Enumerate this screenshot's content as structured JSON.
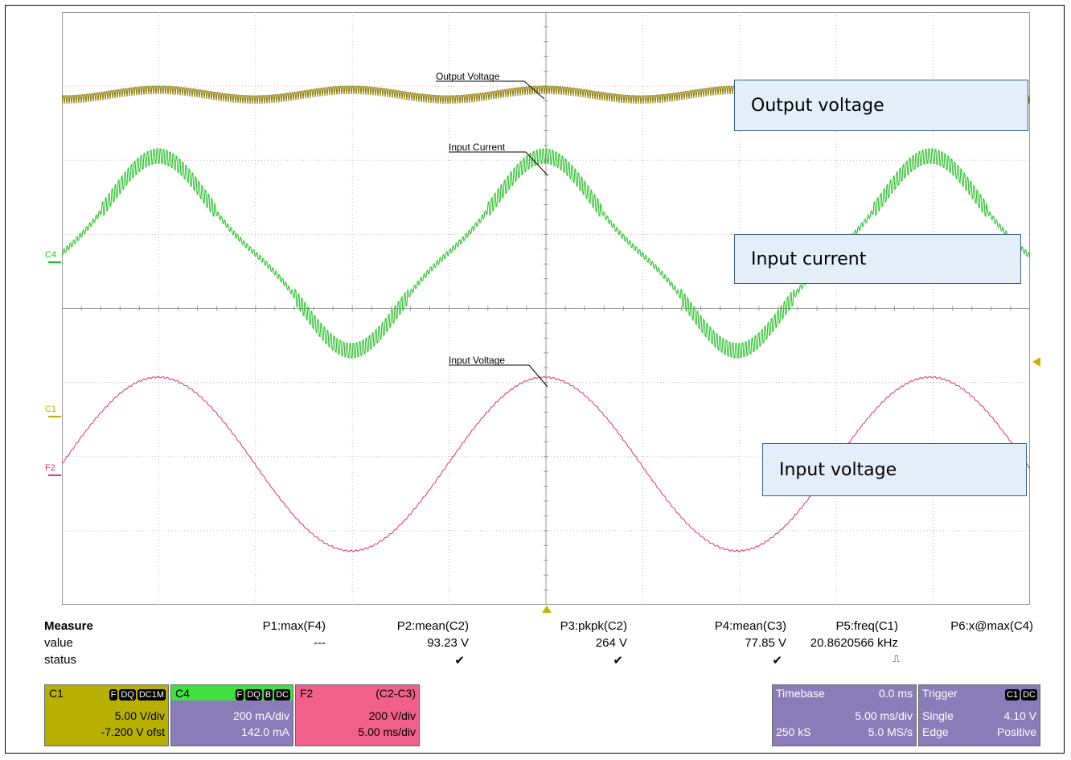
{
  "channel_markers": {
    "c4": "C4",
    "c1": "C1",
    "f2": "F2"
  },
  "trace_labels": {
    "output": "Output Voltage",
    "current": "Input Current",
    "voltage": "Input Voltage"
  },
  "callouts": {
    "output": "Output voltage",
    "current": "Input current",
    "voltage": "Input voltage"
  },
  "measure": {
    "title": "Measure",
    "value_label": "value",
    "status_label": "status",
    "columns": [
      {
        "name": "P1:max(F4)",
        "value": "---",
        "status": ""
      },
      {
        "name": "P2:mean(C2)",
        "value": "93.23 V",
        "status": "✔"
      },
      {
        "name": "P3:pkpk(C2)",
        "value": "264 V",
        "status": "✔"
      },
      {
        "name": "P4:mean(C3)",
        "value": "77.85 V",
        "status": "✔"
      },
      {
        "name": "P5:freq(C1)",
        "value": "20.8620566 kHz",
        "status": "⎍"
      },
      {
        "name": "P6:x@max(C4)",
        "value": "",
        "status": ""
      }
    ]
  },
  "channels": {
    "c1": {
      "name": "C1",
      "tags": [
        "F",
        "DQ",
        "DC1M"
      ],
      "scale": "5.00 V/div",
      "offset": "-7.200 V ofst",
      "color": "#b8b000"
    },
    "c4": {
      "name": "C4",
      "tags": [
        "F",
        "DQ",
        "B",
        "DC"
      ],
      "scale": "200 mA/div",
      "offset": "142.0 mA",
      "color": "#40e040"
    },
    "f2": {
      "name": "F2",
      "formula": "(C2-C3)",
      "scale": "200 V/div",
      "time": "5.00 ms/div",
      "color": "#f0608a"
    }
  },
  "timebase": {
    "label": "Timebase",
    "delay": "0.0 ms",
    "div": "5.00 ms/div",
    "samples": "250 kS",
    "rate": "5.0 MS/s"
  },
  "trigger": {
    "label": "Trigger",
    "tags": [
      "C1",
      "DC"
    ],
    "mode": "Single",
    "level": "4.10 V",
    "type": "Edge",
    "slope": "Positive"
  },
  "colors": {
    "output_trace": "#8a7a00",
    "current_trace": "#20b820",
    "voltage_trace": "#e8306a",
    "box_purple": "#8a7cb8",
    "grid": "#b0b0b0"
  }
}
